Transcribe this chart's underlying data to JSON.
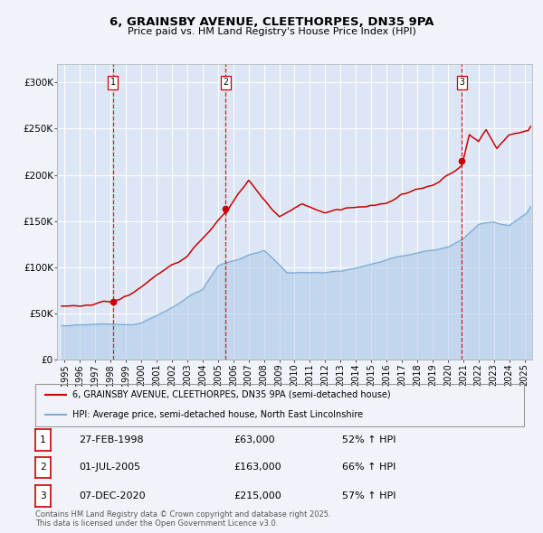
{
  "title_line1": "6, GRAINSBY AVENUE, CLEETHORPES, DN35 9PA",
  "title_line2": "Price paid vs. HM Land Registry's House Price Index (HPI)",
  "bg_color": "#f0f4fa",
  "plot_bg_color": "#dce6f5",
  "grid_color": "#ffffff",
  "sale_dates": [
    1998.15,
    2005.5,
    2020.92
  ],
  "sale_prices": [
    63000,
    163000,
    215000
  ],
  "sale_labels": [
    "1",
    "2",
    "3"
  ],
  "sale_annotations": [
    {
      "label": "1",
      "date": "27-FEB-1998",
      "price": "£63,000",
      "hpi": "52% ↑ HPI"
    },
    {
      "label": "2",
      "date": "01-JUL-2005",
      "price": "£163,000",
      "hpi": "66% ↑ HPI"
    },
    {
      "label": "3",
      "date": "07-DEC-2020",
      "price": "£215,000",
      "hpi": "57% ↑ HPI"
    }
  ],
  "legend_line1": "6, GRAINSBY AVENUE, CLEETHORPES, DN35 9PA (semi-detached house)",
  "legend_line2": "HPI: Average price, semi-detached house, North East Lincolnshire",
  "footer": "Contains HM Land Registry data © Crown copyright and database right 2025.\nThis data is licensed under the Open Government Licence v3.0.",
  "red_color": "#cc0000",
  "blue_color": "#7aadd4",
  "blue_fill_color": "#aec9e8",
  "dashed_red": "#cc0000",
  "ylim": [
    0,
    320000
  ],
  "xlim_start": 1994.5,
  "xlim_end": 2025.5,
  "yticks": [
    0,
    50000,
    100000,
    150000,
    200000,
    250000,
    300000
  ],
  "ytick_labels": [
    "£0",
    "£50K",
    "£100K",
    "£150K",
    "£200K",
    "£250K",
    "£300K"
  ],
  "xticks": [
    1995,
    1996,
    1997,
    1998,
    1999,
    2000,
    2001,
    2002,
    2003,
    2004,
    2005,
    2006,
    2007,
    2008,
    2009,
    2010,
    2011,
    2012,
    2013,
    2014,
    2015,
    2016,
    2017,
    2018,
    2019,
    2020,
    2021,
    2022,
    2023,
    2024,
    2025
  ]
}
